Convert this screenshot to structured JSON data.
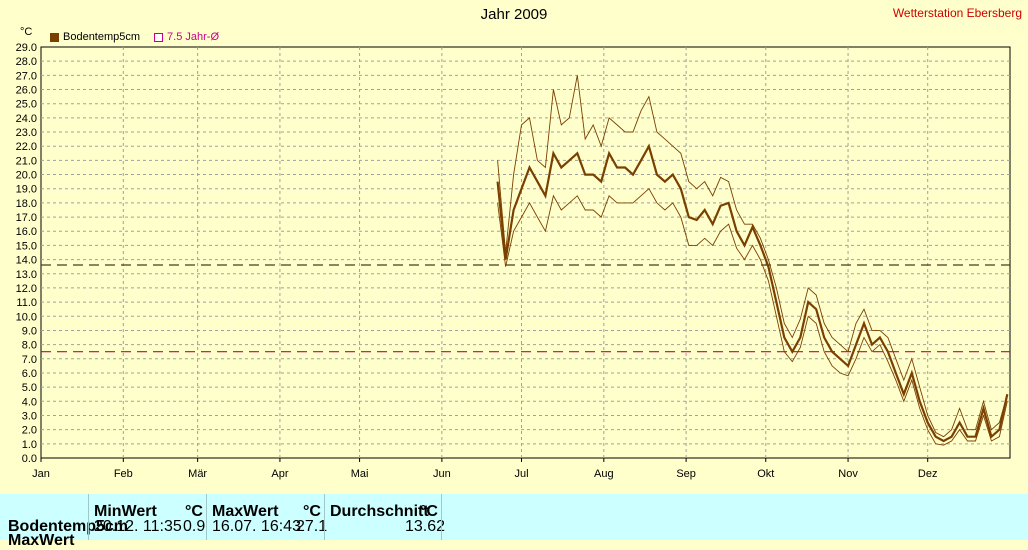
{
  "header": {
    "title": "Jahr 2009",
    "station": "Wetterstation Ebersberg",
    "unit": "°C"
  },
  "legend": [
    {
      "label": "Bodentemp5cm",
      "color": "#7a4000"
    },
    {
      "label": "7.5 Jahr-Ø",
      "color": "#cc0088"
    }
  ],
  "chart_data": {
    "type": "line",
    "title": "Jahr 2009",
    "ylabel": "°C",
    "ylim": [
      0,
      29
    ],
    "yticks": [
      "0.0",
      "1.0",
      "2.0",
      "3.0",
      "4.0",
      "5.0",
      "6.0",
      "7.0",
      "8.0",
      "9.0",
      "10.0",
      "11.0",
      "12.0",
      "13.0",
      "14.0",
      "15.0",
      "16.0",
      "17.0",
      "18.0",
      "19.0",
      "20.0",
      "21.0",
      "22.0",
      "23.0",
      "24.0",
      "25.0",
      "26.0",
      "27.0",
      "28.0",
      "29.0"
    ],
    "xticks": [
      "Jan",
      "Feb",
      "Mär",
      "Apr",
      "Mai",
      "Jun",
      "Jul",
      "Aug",
      "Sep",
      "Okt",
      "Nov",
      "Dez"
    ],
    "grid": true,
    "legend_position": "top-left",
    "reference_lines": [
      {
        "name": "Durchschnitt",
        "value": 13.62,
        "color": "#4a3a20"
      },
      {
        "name": "7.5 Jahr-Ø",
        "value": 7.5,
        "color": "#cc0055"
      }
    ],
    "series": [
      {
        "name": "Bodentemp5cm",
        "color": "#7a4000",
        "day": [
          172,
          175,
          178,
          181,
          184,
          187,
          190,
          193,
          196,
          199,
          202,
          205,
          208,
          211,
          214,
          217,
          220,
          223,
          226,
          229,
          232,
          235,
          238,
          241,
          244,
          247,
          250,
          253,
          256,
          259,
          262,
          265,
          268,
          271,
          274,
          277,
          280,
          283,
          286,
          289,
          292,
          295,
          298,
          301,
          304,
          307,
          310,
          313,
          316,
          319,
          322,
          325,
          328,
          331,
          334,
          337,
          340,
          343,
          346,
          349,
          352,
          355,
          358,
          361,
          364
        ],
        "mean": [
          19.5,
          14.0,
          17.5,
          19.0,
          20.5,
          19.5,
          18.5,
          21.5,
          20.5,
          21.0,
          21.5,
          20.0,
          20.0,
          19.5,
          21.5,
          20.5,
          20.5,
          20.0,
          21.0,
          22.0,
          20.0,
          19.5,
          20.0,
          19.0,
          17.0,
          16.8,
          17.5,
          16.5,
          17.8,
          18.0,
          16.0,
          15.0,
          16.3,
          15.0,
          13.5,
          11.0,
          8.5,
          7.5,
          8.5,
          11.0,
          10.5,
          8.5,
          7.5,
          7.0,
          6.5,
          8.0,
          9.5,
          8.0,
          8.5,
          7.5,
          6.0,
          4.5,
          6.0,
          4.0,
          2.5,
          1.5,
          1.2,
          1.5,
          2.5,
          1.5,
          1.5,
          3.5,
          1.5,
          2.0,
          4.5
        ],
        "max": [
          21.0,
          14.5,
          20.0,
          23.5,
          24.0,
          21.0,
          20.5,
          26.0,
          23.5,
          24.0,
          27.0,
          22.5,
          23.5,
          22.0,
          24.0,
          23.5,
          23.0,
          23.0,
          24.5,
          25.5,
          23.0,
          22.5,
          22.0,
          21.5,
          19.5,
          19.0,
          19.5,
          18.5,
          19.8,
          19.5,
          17.5,
          16.5,
          16.5,
          15.5,
          14.0,
          12.0,
          9.5,
          8.5,
          9.8,
          12.0,
          11.5,
          9.5,
          8.5,
          8.0,
          7.5,
          9.5,
          10.5,
          9.0,
          9.0,
          8.5,
          7.0,
          5.5,
          7.0,
          5.0,
          3.0,
          1.8,
          1.5,
          2.0,
          3.5,
          2.0,
          2.0,
          4.0,
          2.0,
          2.5,
          4.5
        ],
        "min": [
          18.0,
          13.5,
          16.0,
          17.0,
          18.0,
          17.0,
          16.0,
          18.5,
          17.5,
          18.0,
          18.5,
          17.5,
          17.5,
          17.0,
          18.5,
          18.0,
          18.0,
          18.0,
          18.5,
          19.0,
          18.0,
          17.5,
          18.0,
          17.0,
          15.0,
          15.0,
          15.5,
          15.0,
          16.0,
          16.5,
          14.8,
          14.0,
          15.0,
          14.0,
          12.5,
          10.0,
          7.5,
          6.8,
          7.8,
          10.0,
          9.5,
          7.5,
          6.5,
          6.0,
          5.8,
          7.0,
          8.5,
          7.5,
          8.0,
          6.8,
          5.5,
          4.0,
          5.5,
          3.5,
          2.0,
          1.0,
          0.9,
          1.2,
          2.0,
          1.2,
          1.2,
          3.0,
          1.2,
          1.5,
          4.0
        ]
      }
    ]
  },
  "stats_table": {
    "row_label": "Bodentemp5cm",
    "row2_label": "MaxWert",
    "min": {
      "header": "MinWert",
      "unit": "°C",
      "time": "20.12.  11:35",
      "value": "0.9"
    },
    "max": {
      "header": "MaxWert",
      "unit": "°C",
      "time": "16.07.  16:43",
      "value": "27.1"
    },
    "avg": {
      "header": "Durchschnitt",
      "unit": "°C",
      "value": "13.62"
    }
  }
}
